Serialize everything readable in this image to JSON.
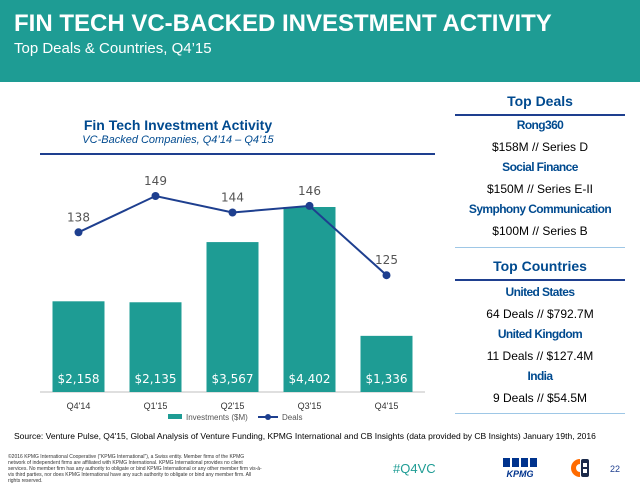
{
  "header": {
    "title": "FIN TECH VC-BACKED INVESTMENT ACTIVITY",
    "subtitle": "Top Deals & Countries, Q4’15"
  },
  "chart_data": {
    "type": "bar",
    "title": "Fin Tech Investment Activity",
    "subtitle": "VC-Backed Companies, Q4’14 – Q4’15",
    "categories": [
      "Q4'14",
      "Q1'15",
      "Q2'15",
      "Q3'15",
      "Q4'15"
    ],
    "series": [
      {
        "name": "Investments ($M)",
        "type": "bar",
        "values": [
          2158,
          2135,
          3567,
          4402,
          1336
        ],
        "labels": [
          "$2,158",
          "$2,135",
          "$3,567",
          "$4,402",
          "$1,336"
        ],
        "color": "#1e9c94"
      },
      {
        "name": "Deals",
        "type": "line",
        "values": [
          138,
          149,
          144,
          146,
          125
        ],
        "labels": [
          "138",
          "149",
          "144",
          "146",
          "125"
        ],
        "color": "#1e3f8f"
      }
    ],
    "legend": "bottom",
    "grid": false
  },
  "top_deals": {
    "heading": "Top Deals",
    "items": [
      {
        "name": "Rong360",
        "detail": "$158M // Series D"
      },
      {
        "name": "Social Finance",
        "detail": "$150M // Series E-II"
      },
      {
        "name": "Symphony Communication",
        "detail": "$100M // Series B"
      }
    ]
  },
  "top_countries": {
    "heading": "Top Countries",
    "items": [
      {
        "name": "United States",
        "detail": "64 Deals // $792.7M"
      },
      {
        "name": "United Kingdom",
        "detail": "11 Deals // $127.4M"
      },
      {
        "name": "India",
        "detail": "9 Deals // $54.5M"
      }
    ]
  },
  "footer": {
    "source": "Source: Venture Pulse, Q4'15, Global Analysis of Venture Funding, KPMG International and CB Insights (data provided by CB Insights) January 19th, 2016",
    "disclaimer": "©2016 KPMG International Cooperative (“KPMG International”), a Swiss entity. Member firms of the KPMG network of independent firms are affiliated with KPMG International. KPMG International provides no client services. No member firm has any authority to obligate or bind KPMG International or any other member firm vis-à-vis third parties, nor does KPMG International have any such authority to obligate or bind any member firm. All rights reserved.",
    "hashtag": "#Q4VC",
    "kpmg_logo_text": "KPMG",
    "page_number": "22"
  },
  "colors": {
    "teal": "#1e9c94",
    "navy": "#1e3f8f",
    "heading_blue": "#004a8f"
  },
  "icons": [
    "kpmg-logo",
    "cb-insights-logo"
  ]
}
